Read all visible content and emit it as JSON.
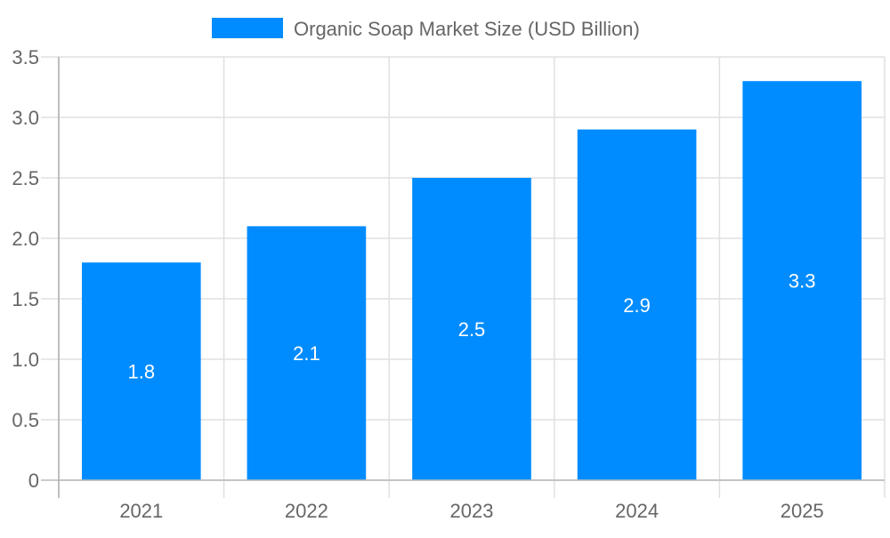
{
  "chart_data": {
    "type": "bar",
    "categories": [
      "2021",
      "2022",
      "2023",
      "2024",
      "2025"
    ],
    "series": [
      {
        "name": "Organic Soap Market Size (USD Billion)",
        "values": [
          1.8,
          2.1,
          2.5,
          2.9,
          3.3
        ],
        "color": "#008cff"
      }
    ],
    "data_labels": [
      "1.8",
      "2.1",
      "2.5",
      "2.9",
      "3.3"
    ],
    "ylim": [
      0,
      3.5
    ],
    "yticks": [
      "0",
      "0.5",
      "1.0",
      "1.5",
      "2.0",
      "2.5",
      "3.0",
      "3.5"
    ],
    "grid": true,
    "legend_position": "top"
  }
}
